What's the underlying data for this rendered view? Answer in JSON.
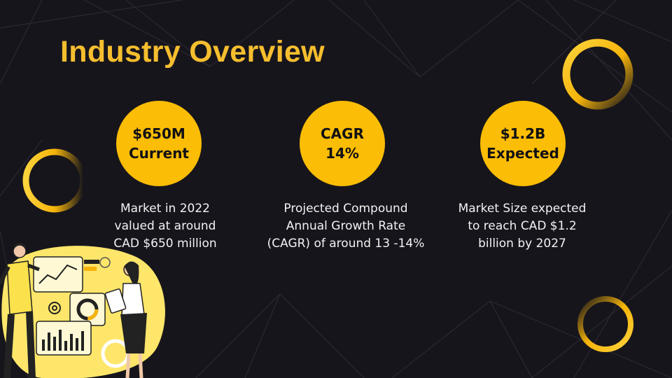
{
  "slide": {
    "title": "Industry Overview",
    "accent_color": "#fbbd05",
    "background_color": "#17151c"
  },
  "stats": [
    {
      "circle_lines": [
        "$650M",
        "Current"
      ],
      "description_lines": [
        "Market in 2022",
        "valued at around",
        "CAD $650 million"
      ]
    },
    {
      "circle_lines": [
        "CAGR",
        "14%"
      ],
      "description_lines": [
        "Projected Compound",
        "Annual Growth Rate",
        "(CAGR) of around 13 -14%"
      ]
    },
    {
      "circle_lines": [
        "$1.2B",
        "Expected"
      ],
      "description_lines": [
        "Market Size expected",
        "to reach CAD $1.2",
        "billion by 2027"
      ]
    }
  ],
  "decorations": {
    "illustration": "business-analytics-illustration"
  }
}
